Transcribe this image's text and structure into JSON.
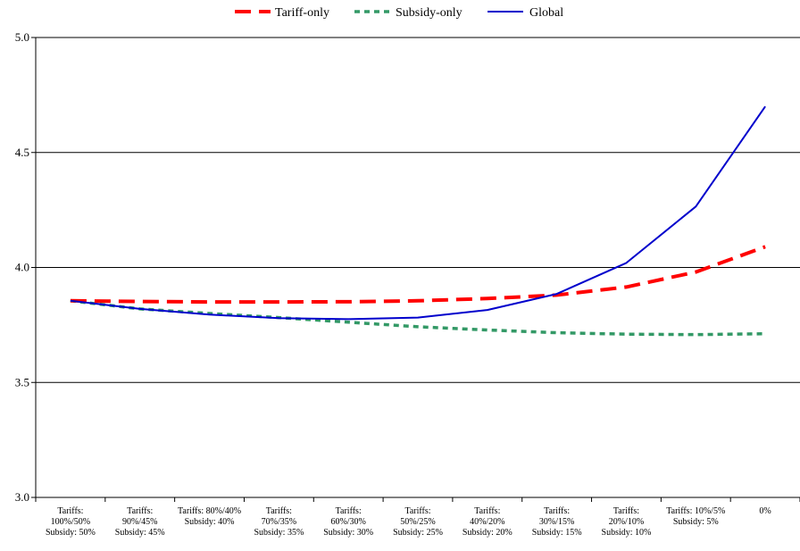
{
  "chart_data": {
    "type": "line",
    "categories": [
      [
        "Tariffs:",
        "100%/50%",
        "Subsidy: 50%"
      ],
      [
        "Tariffs:",
        "90%/45%",
        "Subsidy: 45%"
      ],
      [
        "Tariffs: 80%/40%",
        "Subsidy: 40%"
      ],
      [
        "Tariffs:",
        "70%/35%",
        "Subsidy: 35%"
      ],
      [
        "Tariffs:",
        "60%/30%",
        "Subsidy: 30%"
      ],
      [
        "Tariffs:",
        "50%/25%",
        "Subsidy: 25%"
      ],
      [
        "Tariffs:",
        "40%/20%",
        "Subsidy: 20%"
      ],
      [
        "Tariffs:",
        "30%/15%",
        "Subsidy: 15%"
      ],
      [
        "Tariffs:",
        "20%/10%",
        "Subsidy: 10%"
      ],
      [
        "Tariffs: 10%/5%",
        "Subsidy: 5%"
      ],
      [
        "0%"
      ]
    ],
    "series": [
      {
        "name": "Tariff-only",
        "color": "#ff0000",
        "dash": "dashed",
        "values": [
          3.855,
          3.852,
          3.85,
          3.85,
          3.851,
          3.855,
          3.865,
          3.88,
          3.915,
          3.98,
          4.09
        ]
      },
      {
        "name": "Subsidy-only",
        "color": "#339966",
        "dash": "dotted",
        "values": [
          3.855,
          3.82,
          3.8,
          3.782,
          3.762,
          3.742,
          3.728,
          3.716,
          3.71,
          3.708,
          3.712
        ]
      },
      {
        "name": "Global",
        "color": "#0000cc",
        "dash": "solid",
        "values": [
          3.855,
          3.82,
          3.795,
          3.78,
          3.775,
          3.782,
          3.815,
          3.885,
          4.02,
          4.265,
          4.7
        ]
      }
    ],
    "ylim": [
      3.0,
      5.0
    ],
    "yticks": [
      "3.0",
      "3.5",
      "4.0",
      "4.5",
      "5.0"
    ],
    "grid": true,
    "legend_position": "top-center"
  }
}
